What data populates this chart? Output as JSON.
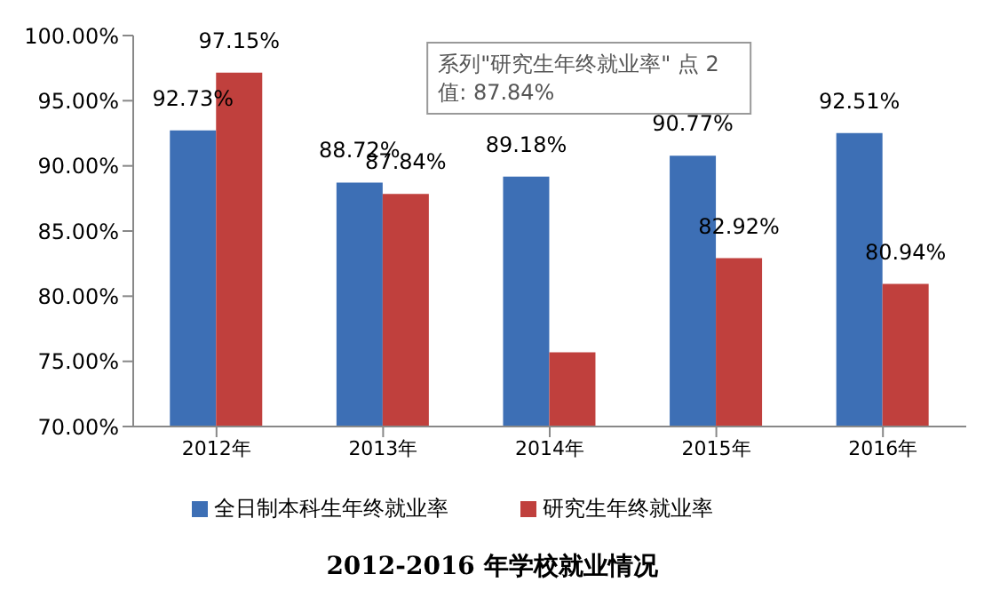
{
  "chart_data": {
    "type": "bar",
    "title": "2012-2016 年学校就业情况",
    "categories": [
      "2012年",
      "2013年",
      "2014年",
      "2015年",
      "2016年"
    ],
    "series": [
      {
        "name": "全日制本科生年终就业率",
        "color": "#3d6fb5",
        "values": [
          92.73,
          88.72,
          89.18,
          90.77,
          92.51
        ],
        "value_labels": [
          "92.73%",
          "88.72%",
          "89.18%",
          "90.77%",
          "92.51%"
        ]
      },
      {
        "name": "研究生年终就业率",
        "color": "#c0403d",
        "values": [
          97.15,
          87.84,
          75.7,
          82.92,
          80.94
        ],
        "value_labels": [
          "97.15%",
          "87.84%",
          null,
          "82.92%",
          "80.94%"
        ]
      }
    ],
    "ylim": [
      70,
      100
    ],
    "yticks": [
      {
        "value": 70,
        "label": "70.00%"
      },
      {
        "value": 75,
        "label": "75.00%"
      },
      {
        "value": 80,
        "label": "80.00%"
      },
      {
        "value": 85,
        "label": "85.00%"
      },
      {
        "value": 90,
        "label": "90.00%"
      },
      {
        "value": 95,
        "label": "95.00%"
      },
      {
        "value": 100,
        "label": "100.00%"
      }
    ],
    "grid": false,
    "legend": "bottom",
    "annotations": [
      "系列\"研究生年终就业率\" 点 2\n值: 87.84%"
    ]
  }
}
